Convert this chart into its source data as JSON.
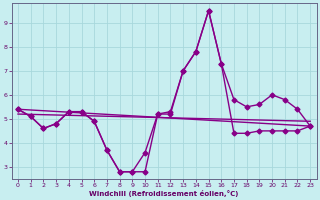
{
  "xlabel": "Windchill (Refroidissement éolien,°C)",
  "bg_color": "#c8eef0",
  "grid_color": "#a8d8dc",
  "line_color": "#880088",
  "text_color": "#660066",
  "spine_color": "#666688",
  "xlim": [
    -0.5,
    23.5
  ],
  "ylim": [
    2.5,
    9.8
  ],
  "yticks": [
    3,
    4,
    5,
    6,
    7,
    8,
    9
  ],
  "xticks": [
    0,
    1,
    2,
    3,
    4,
    5,
    6,
    7,
    8,
    9,
    10,
    11,
    12,
    13,
    14,
    15,
    16,
    17,
    18,
    19,
    20,
    21,
    22,
    23
  ],
  "series1_x": [
    0,
    1,
    2,
    3,
    4,
    5,
    6,
    7,
    8,
    9,
    10,
    11,
    12,
    13,
    14,
    15,
    16,
    17,
    18,
    19,
    20,
    21,
    22,
    23
  ],
  "series1_y": [
    5.4,
    5.1,
    4.6,
    4.8,
    5.3,
    5.3,
    4.9,
    3.7,
    2.8,
    2.8,
    2.8,
    5.2,
    5.2,
    7.0,
    7.8,
    9.5,
    7.3,
    4.4,
    4.4,
    4.5,
    4.5,
    4.5,
    4.5,
    4.7
  ],
  "series2_x": [
    0,
    1,
    2,
    3,
    4,
    5,
    6,
    7,
    8,
    9,
    10,
    11,
    12,
    13,
    14,
    15,
    16,
    17,
    18,
    19,
    20,
    21,
    22,
    23
  ],
  "series2_y": [
    5.4,
    5.1,
    4.6,
    4.8,
    5.3,
    5.3,
    4.9,
    3.7,
    2.8,
    2.8,
    3.6,
    5.2,
    5.3,
    7.0,
    7.8,
    9.5,
    7.3,
    5.8,
    5.5,
    5.6,
    6.0,
    5.8,
    5.4,
    4.7
  ],
  "series3_x": [
    0,
    23
  ],
  "series3_y": [
    5.4,
    4.7
  ],
  "series4_x": [
    0,
    23
  ],
  "series4_y": [
    5.2,
    4.9
  ],
  "markersize": 2.5,
  "linewidth": 1.0
}
